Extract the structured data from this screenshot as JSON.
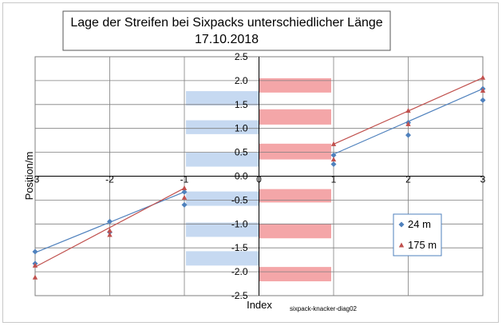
{
  "chart_data": {
    "type": "scatter",
    "title_line1": "Lage der Streifen bei Sixpacks unterschiedlicher Länge",
    "title_line2": "17.10.2018",
    "xlabel": "Index",
    "ylabel": "Position/m",
    "xlim": [
      -3,
      3
    ],
    "ylim": [
      -2.5,
      2.5
    ],
    "x_ticks": [
      "-3",
      "-2",
      "-1",
      "0",
      "1",
      "2",
      "3"
    ],
    "y_ticks": [
      "2.5",
      "2.0",
      "1.5",
      "1.0",
      "0.5",
      "0.0",
      "-0.5",
      "-1.0",
      "-1.5",
      "-2.0",
      "-2.5"
    ],
    "grid": true,
    "legend_position": "bottom-right",
    "credit": "sixpack-knacker-diag02",
    "series": [
      {
        "name": "24 m",
        "color": "#4f81bd",
        "marker": "diamond",
        "points": [
          {
            "x": -3,
            "y": -1.58
          },
          {
            "x": -3,
            "y": -1.83
          },
          {
            "x": -2,
            "y": -0.95
          },
          {
            "x": -2,
            "y": -1.17
          },
          {
            "x": -1,
            "y": -0.33
          },
          {
            "x": -1,
            "y": -0.6
          },
          {
            "x": 1,
            "y": 0.44
          },
          {
            "x": 1,
            "y": 0.25
          },
          {
            "x": 2,
            "y": 1.12
          },
          {
            "x": 2,
            "y": 0.86
          },
          {
            "x": 3,
            "y": 1.83
          },
          {
            "x": 3,
            "y": 1.59
          }
        ],
        "fit_lines": [
          {
            "from": [
              -3,
              -1.6
            ],
            "to": [
              -1,
              -0.33
            ]
          },
          {
            "from": [
              1,
              0.46
            ],
            "to": [
              3,
              1.83
            ]
          }
        ]
      },
      {
        "name": "175 m",
        "color": "#c0504d",
        "marker": "triangle",
        "points": [
          {
            "x": -3,
            "y": -1.87
          },
          {
            "x": -3,
            "y": -2.12
          },
          {
            "x": -2,
            "y": -1.14
          },
          {
            "x": -2,
            "y": -1.23
          },
          {
            "x": -1,
            "y": -0.25
          },
          {
            "x": -1,
            "y": -0.45
          },
          {
            "x": 1,
            "y": 0.67
          },
          {
            "x": 1,
            "y": 0.35
          },
          {
            "x": 2,
            "y": 1.37
          },
          {
            "x": 2,
            "y": 1.09
          },
          {
            "x": 3,
            "y": 2.06
          },
          {
            "x": 3,
            "y": 1.79
          }
        ],
        "fit_lines": [
          {
            "from": [
              -3,
              -1.9
            ],
            "to": [
              -1,
              -0.25
            ]
          },
          {
            "from": [
              1,
              0.67
            ],
            "to": [
              3,
              2.06
            ]
          }
        ]
      }
    ],
    "stripe_bands": [
      {
        "color": "#c6d9f1",
        "x_range": [
          -1,
          0
        ],
        "y_ranges": [
          [
            1.48,
            1.78
          ],
          [
            0.88,
            1.17
          ],
          [
            0.2,
            0.5
          ],
          [
            -0.62,
            -0.32
          ],
          [
            -1.27,
            -0.97
          ],
          [
            -1.87,
            -1.57
          ]
        ]
      },
      {
        "color": "#f4a6a8",
        "x_range": [
          0,
          1
        ],
        "y_ranges": [
          [
            1.75,
            2.05
          ],
          [
            1.08,
            1.4
          ],
          [
            0.35,
            0.68
          ],
          [
            -0.55,
            -0.27
          ],
          [
            -1.3,
            -1.0
          ],
          [
            -2.2,
            -1.9
          ]
        ]
      }
    ]
  }
}
